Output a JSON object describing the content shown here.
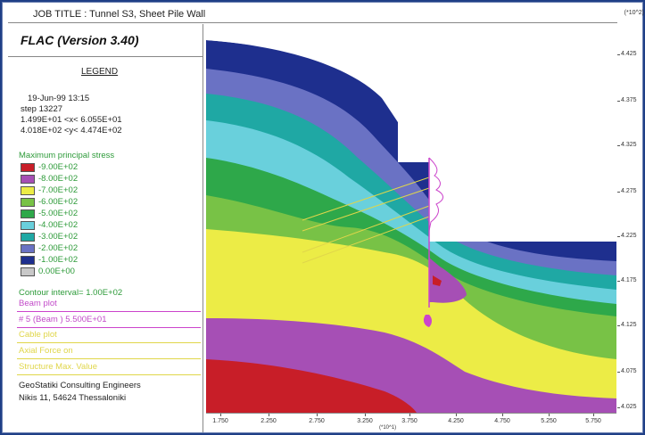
{
  "header": {
    "job_title": "JOB TITLE :  Tunnel S3, Sheet Pile Wall",
    "y_scale_note": "(*10^2)"
  },
  "legend": {
    "program": "FLAC (Version 3.40)",
    "title": "LEGEND",
    "date": "19-Jun-99  13:15",
    "step": "step     13227",
    "x_range": "1.499E+01 <x<  6.055E+01",
    "y_range": "4.018E+02 <y<  4.474E+02",
    "stress_title": "Maximum principal stress",
    "contours": [
      {
        "label": "-9.00E+02",
        "color": "#c81e28"
      },
      {
        "label": "-8.00E+02",
        "color": "#a64fb5"
      },
      {
        "label": "-7.00E+02",
        "color": "#ecec46"
      },
      {
        "label": "-6.00E+02",
        "color": "#78c246"
      },
      {
        "label": "-5.00E+02",
        "color": "#2ea84a"
      },
      {
        "label": "-4.00E+02",
        "color": "#69d0dc"
      },
      {
        "label": "-3.00E+02",
        "color": "#1fa8a4"
      },
      {
        "label": "-2.00E+02",
        "color": "#6a72c4"
      },
      {
        "label": "-1.00E+02",
        "color": "#1e2f8e"
      },
      {
        "label": " 0.00E+00",
        "color": "#c8c8c8"
      }
    ],
    "contour_interval": "Contour interval=  1.00E+02",
    "beam_plot": "Beam plot",
    "beam_value": "# 5 (Beam )     5.500E+01",
    "cable_plot": "Cable plot",
    "axial_force": "Axial Force on",
    "structure": "Structure     Max. Value",
    "company": "GeoStatiki Consulting Engineers",
    "address": "Nikis 11, 54624 Thessaloniki"
  },
  "axes": {
    "y_ticks": [
      "4.425",
      "4.375",
      "4.325",
      "4.275",
      "4.225",
      "4.175",
      "4.125",
      "4.075",
      "4.025"
    ],
    "x_ticks": [
      "1.750",
      "2.250",
      "2.750",
      "3.250",
      "3.750",
      "4.250",
      "4.750",
      "5.250",
      "5.750"
    ],
    "x_unit": "(*10^1)"
  },
  "colors": {
    "navy": "#1e2f8e",
    "slate": "#6a72c4",
    "teal": "#1fa8a4",
    "cyan": "#69d0dc",
    "green": "#2ea84a",
    "lightgreen": "#78c246",
    "yellow": "#ecec46",
    "purple": "#a64fb5",
    "red": "#c81e28",
    "beam": "#cc44cc"
  }
}
